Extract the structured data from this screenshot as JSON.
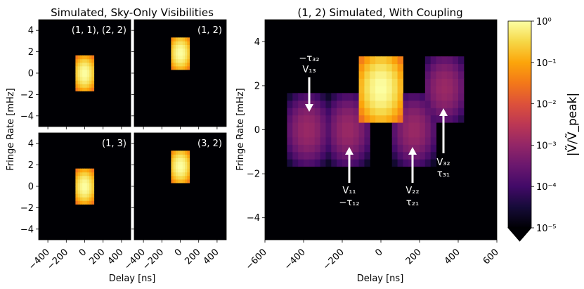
{
  "figure": {
    "left_title": "Simulated, Sky-Only Visibilities",
    "right_title": "(1, 2) Simulated, With Coupling",
    "xlabel": "Delay [ns]",
    "ylabel": "Fringe Rate [mHz]",
    "colorbar_label": "|Ṽ/Ṽ_peak|"
  },
  "chart_data": [
    {
      "type": "heatmap",
      "title": "Simulated, Sky-Only Visibilities",
      "xlabel": "Delay [ns]",
      "ylabel": "Fringe Rate [mHz]",
      "xlim": [
        -500,
        500
      ],
      "ylim": [
        -5,
        5
      ],
      "x_ticks": [
        -400,
        -200,
        0,
        200,
        400
      ],
      "x_tick_labels": [
        "−400",
        "−200",
        "0",
        "200",
        "400"
      ],
      "y_ticks": [
        -4,
        -2,
        0,
        2,
        4
      ],
      "y_tick_labels": [
        "−4",
        "−2",
        "0",
        "2",
        "4"
      ],
      "panels": [
        {
          "label": "(1, 1), (2, 2)",
          "peaks": [
            {
              "delay": 0,
              "fringe_rate": 0,
              "amplitude": 1.0
            }
          ]
        },
        {
          "label": "(1, 2)",
          "peaks": [
            {
              "delay": 0,
              "fringe_rate": 1.9,
              "amplitude": 1.0
            }
          ]
        },
        {
          "label": "(1, 3)",
          "peaks": [
            {
              "delay": 0,
              "fringe_rate": 0,
              "amplitude": 1.0
            }
          ]
        },
        {
          "label": "(3, 2)",
          "peaks": [
            {
              "delay": 0,
              "fringe_rate": 1.9,
              "amplitude": 1.0
            }
          ]
        }
      ]
    },
    {
      "type": "heatmap",
      "title": "(1, 2) Simulated, With Coupling",
      "xlabel": "Delay [ns]",
      "ylabel": "Fringe Rate [mHz]",
      "xlim": [
        -600,
        600
      ],
      "ylim": [
        -5,
        5
      ],
      "x_ticks": [
        -600,
        -400,
        -200,
        0,
        200,
        400,
        600
      ],
      "x_tick_labels": [
        "−600",
        "−400",
        "−200",
        "0",
        "200",
        "400",
        "600"
      ],
      "y_ticks": [
        -4,
        -2,
        0,
        2,
        4
      ],
      "y_tick_labels": [
        "−4",
        "−2",
        "0",
        "2",
        "4"
      ],
      "peaks": [
        {
          "delay": 0,
          "fringe_rate": 1.9,
          "amplitude": 1.0
        },
        {
          "delay": -380,
          "fringe_rate": 0,
          "amplitude": 0.0012
        },
        {
          "delay": -170,
          "fringe_rate": 0,
          "amplitude": 0.0012
        },
        {
          "delay": 170,
          "fringe_rate": 0,
          "amplitude": 0.0012
        },
        {
          "delay": 330,
          "fringe_rate": 1.9,
          "amplitude": 0.0012
        }
      ],
      "annotations": [
        {
          "line1": "−τ₃₂",
          "line2": "V₁₃",
          "delay": -380,
          "arrow_tip_fringe_rate": 0.8,
          "position": "above"
        },
        {
          "line1": "V₁₁",
          "line2": "−τ₁₂",
          "delay": -170,
          "arrow_tip_fringe_rate": -0.8,
          "position": "below"
        },
        {
          "line1": "V₂₂",
          "line2": "τ₂₁",
          "delay": 170,
          "arrow_tip_fringe_rate": -0.8,
          "position": "below"
        },
        {
          "line1": "V₃₂",
          "line2": "τ₃₁",
          "delay": 330,
          "arrow_tip_fringe_rate": 1.0,
          "position": "below"
        }
      ],
      "colorbar": {
        "scale": "log",
        "range": [
          1e-05,
          1
        ],
        "ticks": [
          "10⁻⁵",
          "10⁻⁴",
          "10⁻³",
          "10⁻²",
          "10⁻¹",
          "10⁰"
        ],
        "colormap": "inferno",
        "extend": "min"
      }
    }
  ]
}
